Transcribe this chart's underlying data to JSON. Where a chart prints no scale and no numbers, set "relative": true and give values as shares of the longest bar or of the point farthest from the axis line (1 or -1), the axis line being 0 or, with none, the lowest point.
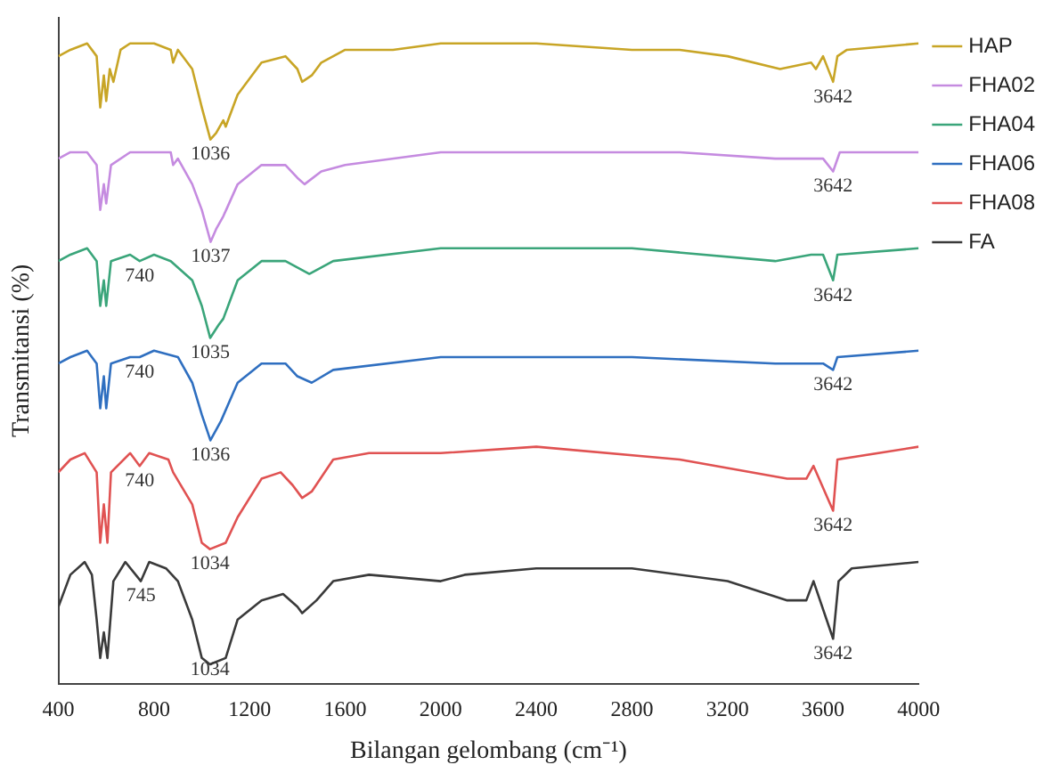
{
  "chart_data": {
    "type": "line",
    "xlabel": "Bilangan gelombang (cm⁻¹)",
    "ylabel": "Transmitansi (%)",
    "relative": true,
    "xlim": [
      400,
      4000
    ],
    "xticks": [
      400,
      800,
      1200,
      1600,
      2000,
      2400,
      2800,
      3200,
      3600,
      4000
    ],
    "grid": false,
    "legend": "top right",
    "marker": "none",
    "line_style": "solid",
    "series": [
      {
        "name": "HAP",
        "color": "#c8a526",
        "x": [
          400,
          450,
          520,
          560,
          575,
          590,
          600,
          615,
          630,
          660,
          700,
          800,
          870,
          880,
          900,
          960,
          1000,
          1036,
          1060,
          1090,
          1100,
          1150,
          1250,
          1350,
          1400,
          1420,
          1460,
          1500,
          1600,
          1800,
          2000,
          2400,
          2800,
          3000,
          3200,
          3420,
          3550,
          3570,
          3600,
          3642,
          3660,
          3700,
          4000
        ],
        "values": [
          0.98,
          0.99,
          1.0,
          0.98,
          0.9,
          0.95,
          0.91,
          0.96,
          0.94,
          0.99,
          1.0,
          1.0,
          0.99,
          0.97,
          0.99,
          0.96,
          0.9,
          0.85,
          0.86,
          0.88,
          0.87,
          0.92,
          0.97,
          0.98,
          0.96,
          0.94,
          0.95,
          0.97,
          0.99,
          0.99,
          1.0,
          1.0,
          0.99,
          0.99,
          0.98,
          0.96,
          0.97,
          0.96,
          0.98,
          0.94,
          0.98,
          0.99,
          1.0
        ]
      },
      {
        "name": "FHA02",
        "color": "#c58be0",
        "x": [
          400,
          450,
          520,
          560,
          575,
          590,
          600,
          620,
          700,
          800,
          870,
          880,
          900,
          960,
          1000,
          1037,
          1060,
          1090,
          1150,
          1250,
          1350,
          1400,
          1430,
          1500,
          1600,
          2000,
          2400,
          2800,
          3000,
          3400,
          3550,
          3600,
          3642,
          3670,
          4000
        ],
        "values": [
          0.82,
          0.83,
          0.83,
          0.81,
          0.74,
          0.78,
          0.75,
          0.81,
          0.83,
          0.83,
          0.83,
          0.81,
          0.82,
          0.78,
          0.74,
          0.69,
          0.71,
          0.73,
          0.78,
          0.81,
          0.81,
          0.79,
          0.78,
          0.8,
          0.81,
          0.83,
          0.83,
          0.83,
          0.83,
          0.82,
          0.82,
          0.82,
          0.8,
          0.83,
          0.83
        ]
      },
      {
        "name": "FHA04",
        "color": "#3aa57a",
        "x": [
          400,
          450,
          520,
          560,
          575,
          590,
          600,
          620,
          700,
          740,
          800,
          870,
          960,
          1000,
          1035,
          1070,
          1090,
          1150,
          1250,
          1350,
          1400,
          1450,
          1550,
          2000,
          2800,
          3400,
          3550,
          3600,
          3642,
          3660,
          4000
        ],
        "values": [
          0.66,
          0.67,
          0.68,
          0.66,
          0.59,
          0.63,
          0.59,
          0.66,
          0.67,
          0.66,
          0.67,
          0.66,
          0.63,
          0.59,
          0.54,
          0.56,
          0.57,
          0.63,
          0.66,
          0.66,
          0.65,
          0.64,
          0.66,
          0.68,
          0.68,
          0.66,
          0.67,
          0.67,
          0.63,
          0.67,
          0.68
        ]
      },
      {
        "name": "FHA06",
        "color": "#2f6fc0",
        "x": [
          400,
          450,
          520,
          560,
          575,
          590,
          600,
          620,
          700,
          740,
          800,
          900,
          960,
          1000,
          1036,
          1080,
          1150,
          1250,
          1350,
          1400,
          1460,
          1550,
          2000,
          2800,
          3400,
          3550,
          3600,
          3642,
          3660,
          4000
        ],
        "values": [
          0.5,
          0.51,
          0.52,
          0.5,
          0.43,
          0.48,
          0.43,
          0.5,
          0.51,
          0.51,
          0.52,
          0.51,
          0.47,
          0.42,
          0.38,
          0.41,
          0.47,
          0.5,
          0.5,
          0.48,
          0.47,
          0.49,
          0.51,
          0.51,
          0.5,
          0.5,
          0.5,
          0.49,
          0.51,
          0.52
        ]
      },
      {
        "name": "FHA08",
        "color": "#e05252",
        "x": [
          400,
          450,
          510,
          560,
          575,
          590,
          605,
          620,
          700,
          740,
          780,
          860,
          880,
          960,
          1000,
          1034,
          1100,
          1150,
          1250,
          1330,
          1380,
          1420,
          1460,
          1550,
          1700,
          2000,
          2400,
          3000,
          3450,
          3530,
          3560,
          3642,
          3660,
          4000
        ],
        "values": [
          0.33,
          0.35,
          0.36,
          0.33,
          0.22,
          0.28,
          0.22,
          0.33,
          0.36,
          0.34,
          0.36,
          0.35,
          0.33,
          0.28,
          0.22,
          0.21,
          0.22,
          0.26,
          0.32,
          0.33,
          0.31,
          0.29,
          0.3,
          0.35,
          0.36,
          0.36,
          0.37,
          0.35,
          0.32,
          0.32,
          0.34,
          0.27,
          0.35,
          0.37
        ]
      },
      {
        "name": "FA",
        "color": "#3a3a3a",
        "x": [
          400,
          450,
          510,
          540,
          560,
          575,
          590,
          605,
          630,
          680,
          745,
          780,
          850,
          900,
          960,
          1000,
          1034,
          1100,
          1150,
          1250,
          1340,
          1400,
          1420,
          1480,
          1550,
          1700,
          2000,
          2100,
          2400,
          2800,
          3200,
          3450,
          3530,
          3560,
          3642,
          3665,
          3720,
          4000
        ],
        "values": [
          0.12,
          0.17,
          0.19,
          0.17,
          0.1,
          0.04,
          0.08,
          0.04,
          0.16,
          0.19,
          0.16,
          0.19,
          0.18,
          0.16,
          0.1,
          0.04,
          0.03,
          0.04,
          0.1,
          0.13,
          0.14,
          0.12,
          0.11,
          0.13,
          0.16,
          0.17,
          0.16,
          0.17,
          0.18,
          0.18,
          0.16,
          0.13,
          0.13,
          0.16,
          0.07,
          0.16,
          0.18,
          0.19
        ]
      }
    ],
    "annotations": [
      {
        "text": "1036",
        "x": 1036,
        "y": 0.85
      },
      {
        "text": "3642",
        "x": 3642,
        "y": 0.94
      },
      {
        "text": "1037",
        "x": 1037,
        "y": 0.69
      },
      {
        "text": "3642",
        "x": 3642,
        "y": 0.8
      },
      {
        "text": "740",
        "x": 740,
        "y": 0.66
      },
      {
        "text": "1035",
        "x": 1035,
        "y": 0.54
      },
      {
        "text": "3642",
        "x": 3642,
        "y": 0.63
      },
      {
        "text": "740",
        "x": 740,
        "y": 0.51
      },
      {
        "text": "1036",
        "x": 1036,
        "y": 0.38
      },
      {
        "text": "3642",
        "x": 3642,
        "y": 0.49
      },
      {
        "text": "740",
        "x": 740,
        "y": 0.34
      },
      {
        "text": "1034",
        "x": 1034,
        "y": 0.21
      },
      {
        "text": "3642",
        "x": 3642,
        "y": 0.27
      },
      {
        "text": "745",
        "x": 745,
        "y": 0.16
      },
      {
        "text": "1034",
        "x": 1034,
        "y": 0.03
      },
      {
        "text": "3642",
        "x": 3642,
        "y": 0.07
      }
    ]
  }
}
